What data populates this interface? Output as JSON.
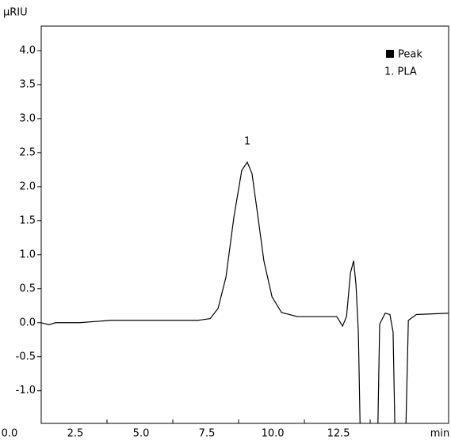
{
  "chart_data": {
    "type": "line",
    "y_label": "µRIU",
    "x_label": "min",
    "peak_label": "1",
    "legend": {
      "marker_label": "Peak",
      "entries": [
        "1. PLA"
      ]
    },
    "xlim": [
      0,
      15.48
    ],
    "ylim": [
      -1.48,
      4.36
    ],
    "xticks": [
      {
        "value": 0,
        "label": "0.0"
      },
      2.5,
      {
        "value": 5,
        "label": "5.0"
      },
      7.5,
      {
        "value": 10,
        "label": "10.0"
      },
      12.5
    ],
    "yticks": [
      {
        "value": -1,
        "label": "-1.0"
      },
      -0.5,
      {
        "value": 0,
        "label": "0.0"
      },
      0.5,
      {
        "value": 1,
        "label": "1.0"
      },
      1.5,
      {
        "value": 2,
        "label": "2.0"
      },
      2.5,
      {
        "value": 3,
        "label": "3.0"
      },
      3.5,
      {
        "value": 4,
        "label": "4.0"
      }
    ],
    "series": [
      {
        "color": "#000000",
        "x": [
          0,
          0.3,
          0.54,
          1.45,
          2.65,
          4.46,
          5.96,
          6.42,
          6.72,
          7.02,
          7.32,
          7.62,
          7.83,
          8.01,
          8.22,
          8.46,
          8.77,
          9.13,
          9.73,
          10.48,
          11.23,
          11.45,
          11.6,
          11.75,
          11.87,
          11.96,
          12.05,
          12.14,
          12.77,
          12.86,
          13.07,
          13.25,
          13.37,
          13.46,
          13.83,
          13.95,
          14.25,
          15.48
        ],
        "values": [
          0,
          -0.03,
          0,
          0,
          0.035,
          0.035,
          0.035,
          0.06,
          0.21,
          0.67,
          1.55,
          2.24,
          2.36,
          2.19,
          1.6,
          0.91,
          0.38,
          0.15,
          0.09,
          0.09,
          0.09,
          -0.05,
          0.09,
          0.73,
          0.91,
          0.56,
          -0.14,
          -2.0,
          -2.0,
          -0.02,
          0.14,
          0.12,
          -0.14,
          -2.0,
          -2.0,
          0.035,
          0.12,
          0.14
        ]
      }
    ]
  }
}
